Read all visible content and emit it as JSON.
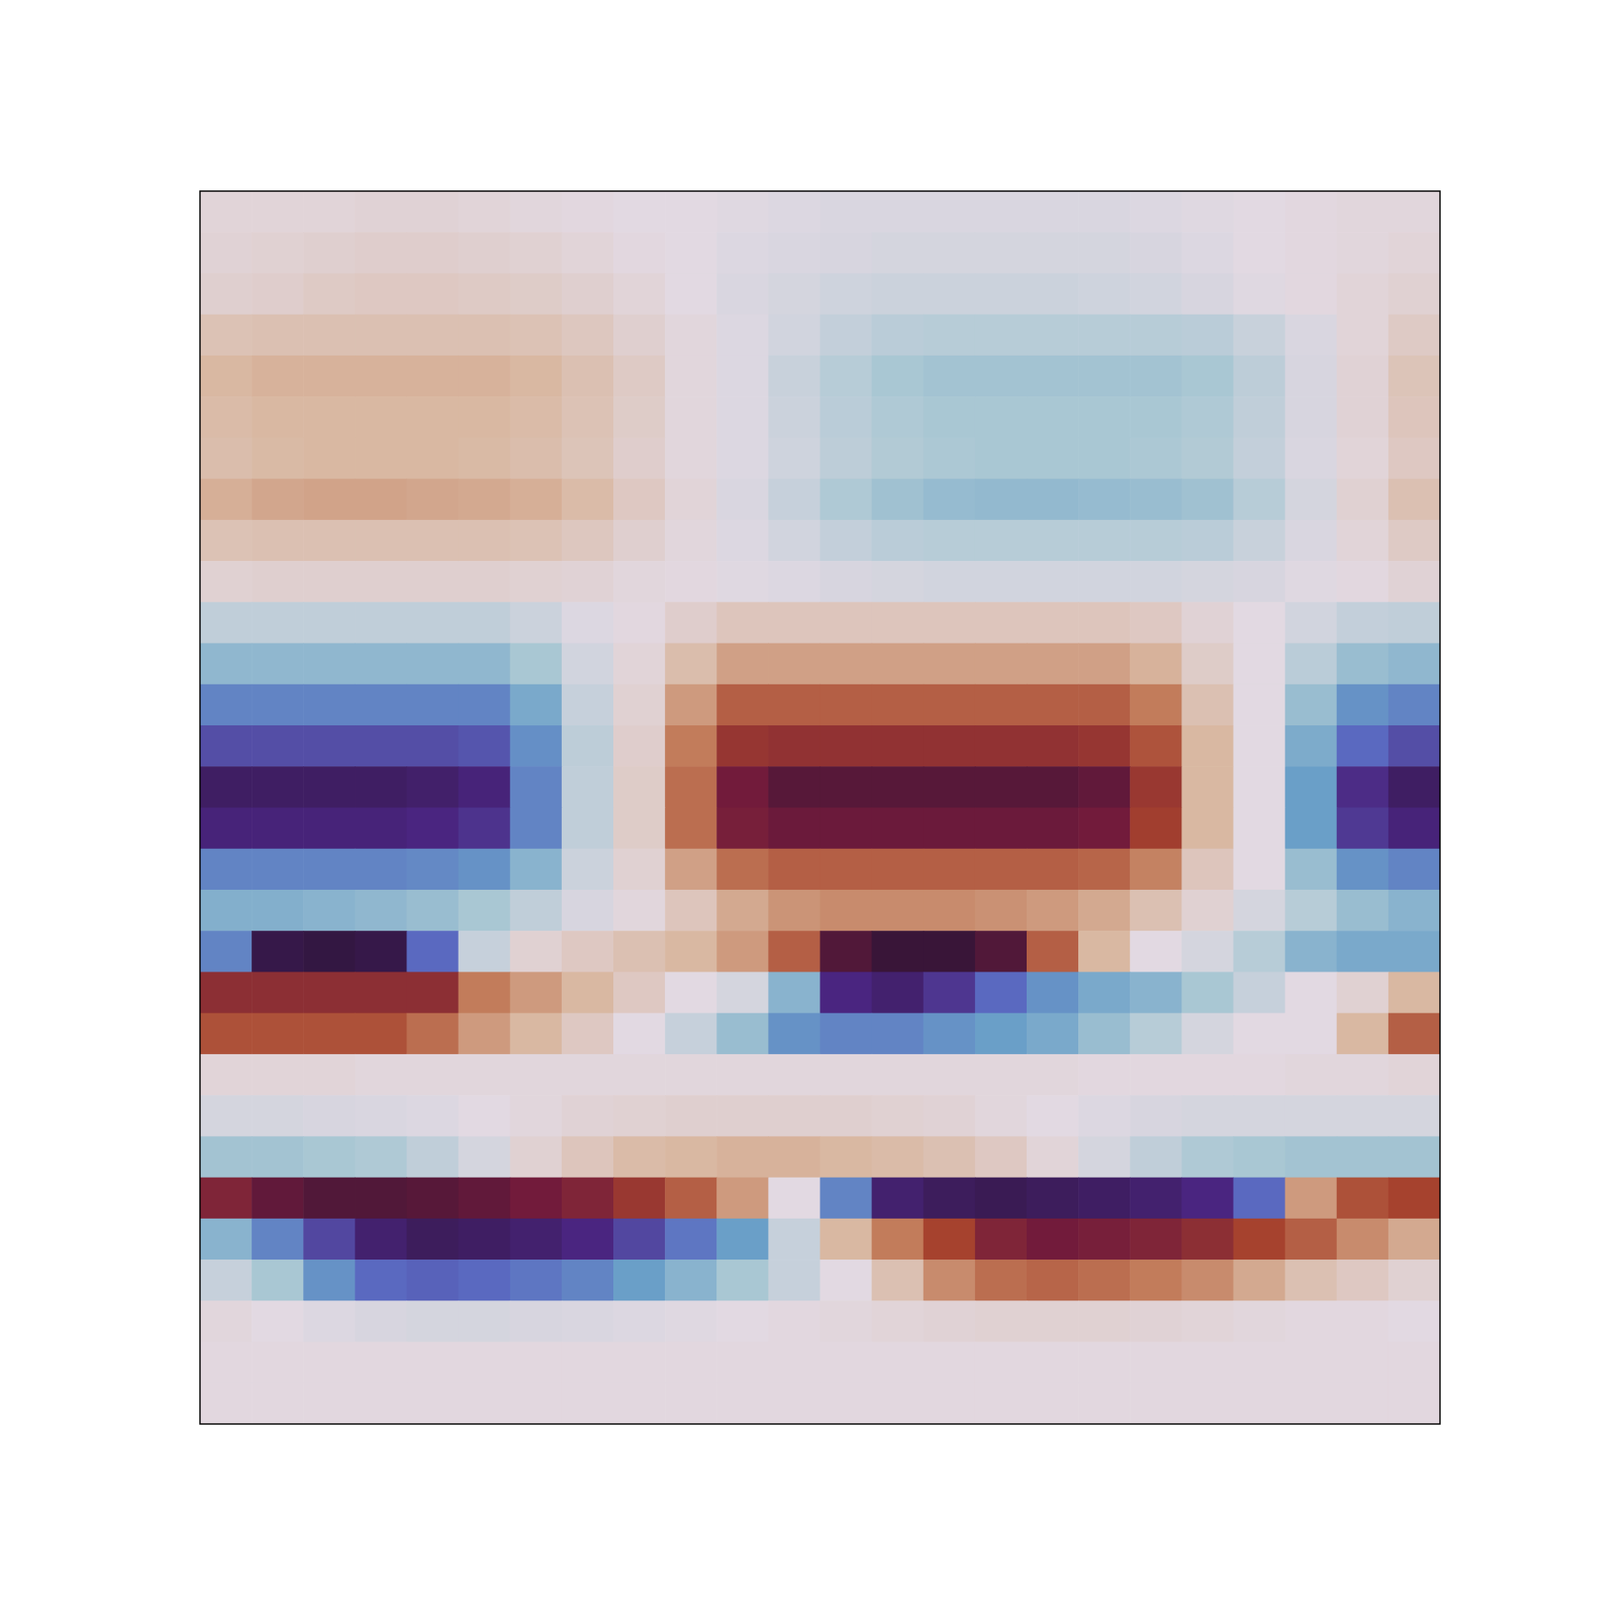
{
  "chart_data": {
    "type": "heatmap",
    "color": "twilight_shifted",
    "tick_labels": false,
    "zlim": [
      -1,
      1
    ],
    "cells": [
      [
        0.03,
        0.03,
        0.03,
        0.04,
        0.04,
        0.03,
        0.02,
        0.01,
        0,
        0,
        -0.01,
        -0.02,
        -0.03,
        -0.03,
        -0.03,
        -0.03,
        -0.03,
        -0.03,
        -0.02,
        -0.01,
        0,
        0.01,
        0.02,
        0.02
      ],
      [
        0.04,
        0.05,
        0.06,
        0.07,
        0.07,
        0.06,
        0.05,
        0.03,
        0.01,
        0,
        -0.02,
        -0.03,
        -0.04,
        -0.05,
        -0.05,
        -0.05,
        -0.05,
        -0.05,
        -0.04,
        -0.02,
        0,
        0.01,
        0.02,
        0.03
      ],
      [
        0.06,
        0.07,
        0.09,
        0.1,
        0.1,
        0.09,
        0.08,
        0.06,
        0.03,
        0,
        -0.03,
        -0.05,
        -0.07,
        -0.08,
        -0.08,
        -0.08,
        -0.08,
        -0.07,
        -0.06,
        -0.04,
        -0.01,
        0.01,
        0.03,
        0.05
      ],
      [
        0.14,
        0.15,
        0.15,
        0.15,
        0.15,
        0.15,
        0.14,
        0.11,
        0.06,
        0.02,
        -0.02,
        -0.06,
        -0.11,
        -0.14,
        -0.15,
        -0.15,
        -0.15,
        -0.15,
        -0.15,
        -0.14,
        -0.09,
        -0.03,
        0.03,
        0.09
      ],
      [
        0.2,
        0.22,
        0.22,
        0.22,
        0.22,
        0.22,
        0.2,
        0.15,
        0.09,
        0.02,
        -0.02,
        -0.09,
        -0.15,
        -0.2,
        -0.22,
        -0.22,
        -0.22,
        -0.22,
        -0.22,
        -0.2,
        -0.13,
        -0.04,
        0.04,
        0.13
      ],
      [
        0.18,
        0.2,
        0.2,
        0.2,
        0.2,
        0.2,
        0.18,
        0.14,
        0.08,
        0.02,
        -0.02,
        -0.08,
        -0.14,
        -0.18,
        -0.2,
        -0.2,
        -0.2,
        -0.2,
        -0.2,
        -0.18,
        -0.12,
        -0.04,
        0.04,
        0.12
      ],
      [
        0.17,
        0.19,
        0.2,
        0.2,
        0.2,
        0.19,
        0.17,
        0.13,
        0.07,
        0.02,
        -0.02,
        -0.07,
        -0.13,
        -0.17,
        -0.19,
        -0.2,
        -0.2,
        -0.2,
        -0.19,
        -0.17,
        -0.11,
        -0.03,
        0.03,
        0.1
      ],
      [
        0.23,
        0.26,
        0.27,
        0.27,
        0.26,
        0.25,
        0.23,
        0.18,
        0.1,
        0.03,
        -0.03,
        -0.1,
        -0.18,
        -0.23,
        -0.26,
        -0.27,
        -0.27,
        -0.26,
        -0.25,
        -0.23,
        -0.15,
        -0.05,
        0.05,
        0.15
      ],
      [
        0.14,
        0.15,
        0.15,
        0.15,
        0.15,
        0.15,
        0.14,
        0.11,
        0.06,
        0.02,
        -0.02,
        -0.06,
        -0.11,
        -0.14,
        -0.15,
        -0.15,
        -0.15,
        -0.15,
        -0.15,
        -0.14,
        -0.09,
        -0.03,
        0.03,
        0.09
      ],
      [
        0.05,
        0.06,
        0.06,
        0.06,
        0.06,
        0.06,
        0.05,
        0.04,
        0.02,
        0.01,
        -0.01,
        -0.02,
        -0.04,
        -0.05,
        -0.06,
        -0.06,
        -0.06,
        -0.06,
        -0.06,
        -0.05,
        -0.04,
        -0.01,
        0.01,
        0.04
      ],
      [
        -0.12,
        -0.12,
        -0.12,
        -0.12,
        -0.12,
        -0.12,
        -0.08,
        -0.02,
        0.01,
        0.07,
        0.12,
        0.12,
        0.12,
        0.12,
        0.12,
        0.12,
        0.12,
        0.12,
        0.1,
        0.04,
        0,
        -0.06,
        -0.11,
        -0.12
      ],
      [
        -0.28,
        -0.28,
        -0.28,
        -0.28,
        -0.28,
        -0.28,
        -0.2,
        -0.06,
        0.03,
        0.17,
        0.28,
        0.28,
        0.28,
        0.28,
        0.28,
        0.28,
        0.28,
        0.28,
        0.22,
        0.08,
        0,
        -0.14,
        -0.25,
        -0.28
      ],
      [
        -0.5,
        -0.5,
        -0.5,
        -0.5,
        -0.5,
        -0.5,
        -0.35,
        -0.1,
        0.05,
        0.3,
        0.5,
        0.5,
        0.5,
        0.5,
        0.5,
        0.5,
        0.5,
        0.5,
        0.4,
        0.15,
        0,
        -0.25,
        -0.45,
        -0.5
      ],
      [
        -0.68,
        -0.68,
        -0.68,
        -0.68,
        -0.68,
        -0.66,
        -0.46,
        -0.13,
        0.07,
        0.4,
        0.66,
        0.68,
        0.68,
        0.68,
        0.68,
        0.68,
        0.68,
        0.66,
        0.54,
        0.2,
        0,
        -0.34,
        -0.6,
        -0.68
      ],
      [
        -0.88,
        -0.88,
        -0.88,
        -0.88,
        -0.86,
        -0.82,
        -0.5,
        -0.12,
        0.08,
        0.45,
        0.8,
        0.88,
        0.88,
        0.88,
        0.88,
        0.88,
        0.88,
        0.85,
        0.65,
        0.2,
        0,
        -0.4,
        -0.78,
        -0.88
      ],
      [
        -0.82,
        -0.82,
        -0.82,
        -0.82,
        -0.8,
        -0.76,
        -0.5,
        -0.12,
        0.08,
        0.45,
        0.78,
        0.82,
        0.82,
        0.82,
        0.82,
        0.82,
        0.82,
        0.8,
        0.62,
        0.2,
        0,
        -0.4,
        -0.74,
        -0.82
      ],
      [
        -0.5,
        -0.5,
        -0.5,
        -0.5,
        -0.48,
        -0.45,
        -0.3,
        -0.08,
        0.05,
        0.28,
        0.45,
        0.5,
        0.5,
        0.5,
        0.5,
        0.5,
        0.5,
        0.48,
        0.38,
        0.12,
        0,
        -0.25,
        -0.45,
        -0.5
      ],
      [
        -0.32,
        -0.32,
        -0.3,
        -0.28,
        -0.25,
        -0.2,
        -0.12,
        -0.04,
        0.02,
        0.12,
        0.25,
        0.32,
        0.35,
        0.35,
        0.35,
        0.33,
        0.3,
        0.25,
        0.15,
        0.05,
        -0.05,
        -0.15,
        -0.25,
        -0.3
      ],
      [
        -0.5,
        -0.95,
        -0.97,
        -0.95,
        -0.6,
        -0.1,
        0.05,
        0.1,
        0.15,
        0.2,
        0.3,
        0.5,
        0.9,
        0.97,
        0.97,
        0.9,
        0.5,
        0.2,
        0,
        -0.05,
        -0.15,
        -0.3,
        -0.35,
        -0.35
      ],
      [
        0.7,
        0.7,
        0.7,
        0.7,
        0.7,
        0.4,
        0.3,
        0.2,
        0.1,
        0,
        -0.05,
        -0.3,
        -0.8,
        -0.85,
        -0.75,
        -0.6,
        -0.45,
        -0.35,
        -0.3,
        -0.2,
        -0.1,
        0,
        0.05,
        0.2
      ],
      [
        0.55,
        0.55,
        0.55,
        0.55,
        0.45,
        0.3,
        0.2,
        0.1,
        0,
        -0.1,
        -0.25,
        -0.45,
        -0.5,
        -0.5,
        -0.45,
        -0.4,
        -0.35,
        -0.25,
        -0.15,
        -0.05,
        0,
        0,
        0.2,
        0.5
      ],
      [
        0.03,
        0.03,
        0.03,
        0.02,
        0.02,
        0.02,
        0.02,
        0.02,
        0.02,
        0.02,
        0.02,
        0.02,
        0.02,
        0.02,
        0.02,
        0.02,
        0.02,
        0.01,
        0.01,
        0.01,
        0.01,
        0.02,
        0.02,
        0.03
      ],
      [
        -0.05,
        -0.05,
        -0.04,
        -0.03,
        -0.02,
        0,
        0.02,
        0.04,
        0.05,
        0.06,
        0.06,
        0.06,
        0.06,
        0.05,
        0.04,
        0.02,
        0,
        -0.02,
        -0.04,
        -0.05,
        -0.05,
        -0.05,
        -0.05,
        -0.05
      ],
      [
        -0.22,
        -0.22,
        -0.2,
        -0.18,
        -0.12,
        -0.05,
        0.05,
        0.12,
        0.18,
        0.2,
        0.22,
        0.22,
        0.2,
        0.18,
        0.15,
        0.1,
        0.03,
        -0.05,
        -0.12,
        -0.18,
        -0.2,
        -0.22,
        -0.22,
        -0.22
      ],
      [
        0.75,
        0.85,
        0.9,
        0.9,
        0.88,
        0.85,
        0.8,
        0.75,
        0.65,
        0.5,
        0.3,
        0,
        -0.5,
        -0.85,
        -0.9,
        -0.92,
        -0.9,
        -0.88,
        -0.85,
        -0.8,
        -0.6,
        0.3,
        0.55,
        0.6
      ],
      [
        -0.3,
        -0.5,
        -0.7,
        -0.85,
        -0.9,
        -0.88,
        -0.85,
        -0.8,
        -0.7,
        -0.55,
        -0.4,
        -0.1,
        0.2,
        0.4,
        0.6,
        0.75,
        0.8,
        0.78,
        0.75,
        0.7,
        0.6,
        0.5,
        0.35,
        0.25
      ],
      [
        -0.1,
        -0.2,
        -0.45,
        -0.6,
        -0.62,
        -0.6,
        -0.55,
        -0.5,
        -0.4,
        -0.3,
        -0.2,
        -0.1,
        0,
        0.15,
        0.35,
        0.45,
        0.48,
        0.45,
        0.4,
        0.35,
        0.25,
        0.15,
        0.1,
        0.05
      ],
      [
        0.02,
        0,
        -0.02,
        -0.04,
        -0.05,
        -0.05,
        -0.04,
        -0.03,
        -0.02,
        -0.01,
        0,
        0.01,
        0.02,
        0.03,
        0.04,
        0.05,
        0.05,
        0.05,
        0.04,
        0.03,
        0.02,
        0.01,
        0.01,
        0
      ],
      [
        0.01,
        0.01,
        0.01,
        0.01,
        0.01,
        0.01,
        0.01,
        0.01,
        0.01,
        0.01,
        0.01,
        0.01,
        0.01,
        0.01,
        0.01,
        0.01,
        0.01,
        0.01,
        0.01,
        0.01,
        0.01,
        0.01,
        0.01,
        0.01
      ],
      [
        0.01,
        0.01,
        0.01,
        0.01,
        0.01,
        0.01,
        0.01,
        0.01,
        0.01,
        0.01,
        0.01,
        0.01,
        0.01,
        0.01,
        0.01,
        0.01,
        0.01,
        0.01,
        0.01,
        0.01,
        0.01,
        0.01,
        0.01,
        0.01
      ]
    ]
  }
}
